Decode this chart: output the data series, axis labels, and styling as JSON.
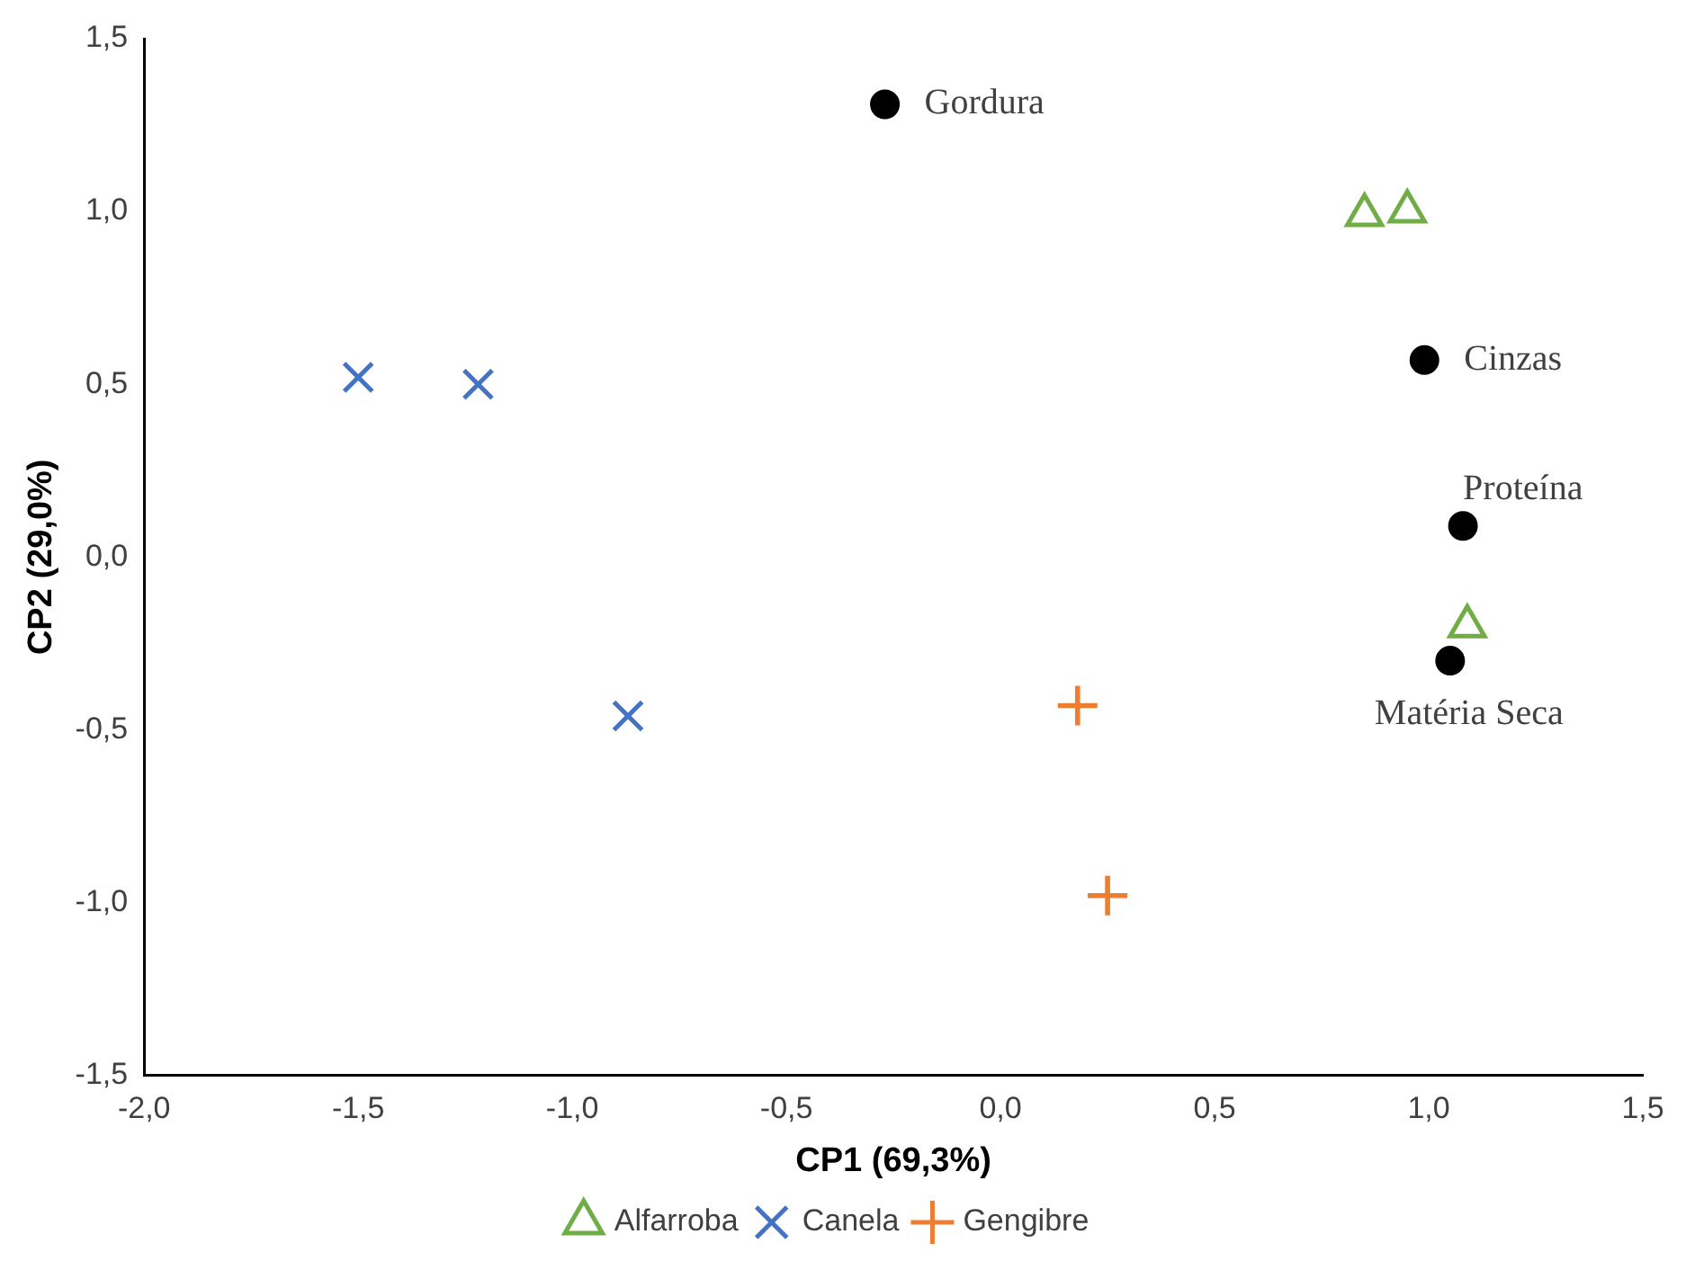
{
  "chart_data": {
    "type": "scatter",
    "xlabel": "CP1 (69,3%)",
    "ylabel": "CP2 (29,0%)",
    "xlim": [
      -2,
      1.5
    ],
    "ylim": [
      -1.5,
      1.5
    ],
    "xticks": [
      {
        "value": -2,
        "label": "-2,0"
      },
      {
        "value": -1.5,
        "label": "-1,5"
      },
      {
        "value": -1,
        "label": "-1,0"
      },
      {
        "value": -0.5,
        "label": "-0,5"
      },
      {
        "value": 0,
        "label": "0,0"
      },
      {
        "value": 0.5,
        "label": "0,5"
      },
      {
        "value": 1,
        "label": "1,0"
      },
      {
        "value": 1.5,
        "label": "1,5"
      }
    ],
    "yticks": [
      {
        "value": -1.5,
        "label": "-1,5"
      },
      {
        "value": -1,
        "label": "-1,0"
      },
      {
        "value": -0.5,
        "label": "-0,5"
      },
      {
        "value": 0,
        "label": "0,0"
      },
      {
        "value": 0.5,
        "label": "0,5"
      },
      {
        "value": 1,
        "label": "1,0"
      },
      {
        "value": 1.5,
        "label": "1,5"
      }
    ],
    "grid": false,
    "legend": "bottom",
    "series": [
      {
        "name": "Alfarroba",
        "color": "#70ad47",
        "marker": "triangle",
        "x": [
          0.85,
          0.95,
          1.09
        ],
        "values": [
          0.99,
          1.0,
          -0.2
        ]
      },
      {
        "name": "Canela",
        "color": "#4472c4",
        "marker": "cross",
        "x": [
          -1.5,
          -1.22,
          -0.87
        ],
        "values": [
          0.52,
          0.5,
          -0.46
        ]
      },
      {
        "name": "Gengibre",
        "color": "#ed7d31",
        "x": [
          0.18,
          0.25
        ],
        "values": [
          -0.43,
          -0.98
        ]
      },
      {
        "color": "#000000",
        "marker": "circle",
        "x": [
          -0.27,
          0.99,
          1.08,
          1.05
        ],
        "values": [
          1.31,
          0.57,
          0.09,
          -0.3
        ]
      }
    ],
    "annotations": [
      {
        "text": "Gordura",
        "x": -0.27,
        "y": 1.31
      },
      {
        "text": "Cinzas",
        "x": 0.99,
        "y": 0.57
      },
      {
        "text": "Proteína",
        "x": 1.08,
        "y": 0.09
      },
      {
        "text": "Matéria Seca",
        "x": 1.05,
        "y": -0.3
      }
    ]
  }
}
